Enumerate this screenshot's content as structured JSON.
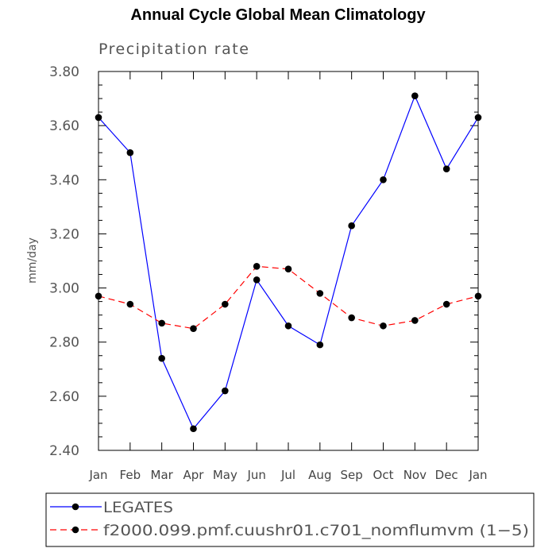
{
  "chart_data": {
    "type": "line",
    "title": "Annual Cycle Global Mean Climatology",
    "subtitle": "Precipitation rate",
    "ylabel": "mm/day",
    "xlabel": "",
    "categories": [
      "Jan",
      "Feb",
      "Mar",
      "Apr",
      "May",
      "Jun",
      "Jul",
      "Aug",
      "Sep",
      "Oct",
      "Nov",
      "Dec",
      "Jan"
    ],
    "ylim": [
      2.4,
      3.8
    ],
    "yticks": [
      "2.40",
      "2.60",
      "2.80",
      "3.00",
      "3.20",
      "3.40",
      "3.60",
      "3.80"
    ],
    "grid": false,
    "legend_position": "bottom",
    "series": [
      {
        "name": "LEGATES",
        "color": "#0000ff",
        "style": "solid",
        "values": [
          3.63,
          3.5,
          2.74,
          2.48,
          2.62,
          3.03,
          2.86,
          2.79,
          3.23,
          3.4,
          3.71,
          3.44,
          3.63
        ]
      },
      {
        "name": "f2000.099.pmf.cuushr01.c701_nomflumvm (1−5)",
        "color": "#ff0000",
        "style": "dashed",
        "values": [
          2.97,
          2.94,
          2.87,
          2.85,
          2.94,
          3.08,
          3.07,
          2.98,
          2.89,
          2.86,
          2.88,
          2.94,
          2.97
        ]
      }
    ]
  }
}
